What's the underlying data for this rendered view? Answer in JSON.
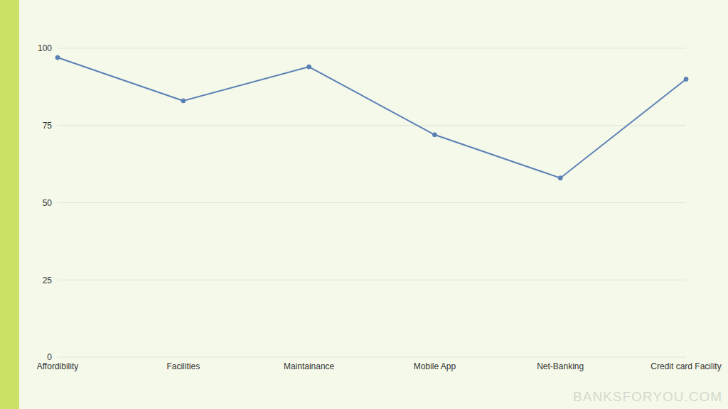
{
  "chart_data": {
    "type": "line",
    "categories": [
      "Affordibility",
      "Facilities",
      "Maintainance",
      "Mobile App",
      "Net-Banking",
      "Credit card Facility"
    ],
    "values": [
      97,
      83,
      94,
      72,
      58,
      90
    ],
    "color": "#5b80b5",
    "ylim": [
      0,
      100
    ],
    "yticks": [
      0,
      25,
      50,
      75,
      100
    ],
    "grid": true,
    "marker": "circle",
    "annotations": [
      "BANKSFORYOU.COM"
    ]
  }
}
